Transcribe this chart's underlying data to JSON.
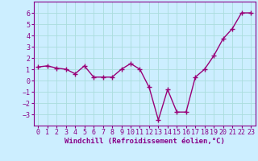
{
  "x": [
    0,
    1,
    2,
    3,
    4,
    5,
    6,
    7,
    8,
    9,
    10,
    11,
    12,
    13,
    14,
    15,
    16,
    17,
    18,
    19,
    20,
    21,
    22,
    23
  ],
  "y": [
    1.2,
    1.3,
    1.1,
    1.0,
    0.6,
    1.3,
    0.3,
    0.3,
    0.3,
    1.0,
    1.5,
    1.0,
    -0.6,
    -3.5,
    -0.8,
    -2.8,
    -2.8,
    0.3,
    1.0,
    2.2,
    3.7,
    4.6,
    6.0,
    6.0
  ],
  "line_color": "#990077",
  "marker": "+",
  "marker_size": 4,
  "line_width": 1.0,
  "xlabel": "Windchill (Refroidissement éolien,°C)",
  "xlim": [
    -0.5,
    23.5
  ],
  "ylim": [
    -4.0,
    7.0
  ],
  "yticks": [
    -3,
    -2,
    -1,
    0,
    1,
    2,
    3,
    4,
    5,
    6
  ],
  "xticks": [
    0,
    1,
    2,
    3,
    4,
    5,
    6,
    7,
    8,
    9,
    10,
    11,
    12,
    13,
    14,
    15,
    16,
    17,
    18,
    19,
    20,
    21,
    22,
    23
  ],
  "bg_color": "#cceeff",
  "grid_color": "#aadddd",
  "tick_color": "#880088",
  "axis_color": "#880088",
  "label_color": "#880088",
  "xlabel_fontsize": 6.5,
  "tick_fontsize": 6.0,
  "xlabel_fontweight": "bold"
}
